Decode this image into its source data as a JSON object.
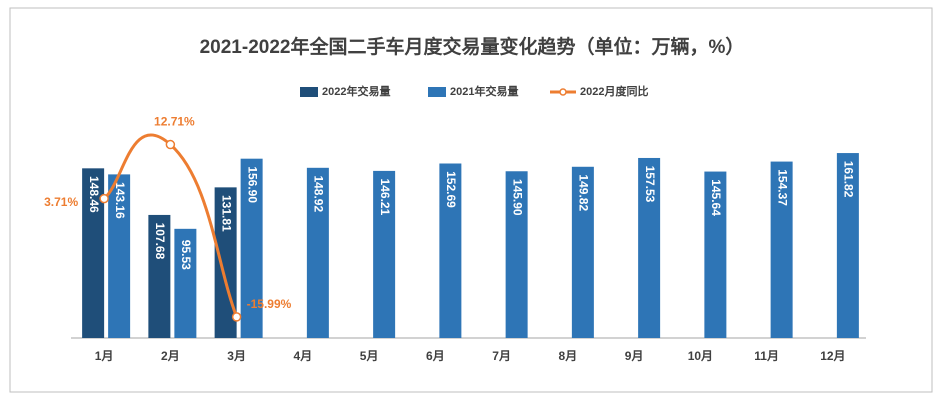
{
  "chart_data": {
    "type": "bar",
    "title": "2021-2022年全国二手车月度交易量变化趋势（单位：万辆，%）",
    "categories": [
      "1月",
      "2月",
      "3月",
      "4月",
      "5月",
      "6月",
      "7月",
      "8月",
      "9月",
      "10月",
      "11月",
      "12月"
    ],
    "ylim": [
      0,
      175
    ],
    "y2lim": [
      -19.5,
      13.8
    ],
    "series": [
      {
        "name": "2022年交易量",
        "type": "bar",
        "color": "#1f4e79",
        "values": [
          148.46,
          107.68,
          131.81,
          null,
          null,
          null,
          null,
          null,
          null,
          null,
          null,
          null
        ],
        "value_labels": [
          "148.46",
          "107.68",
          "131.81",
          null,
          null,
          null,
          null,
          null,
          null,
          null,
          null,
          null
        ]
      },
      {
        "name": "2021年交易量",
        "type": "bar",
        "color": "#2e75b6",
        "values": [
          143.16,
          95.53,
          156.9,
          148.92,
          146.21,
          152.69,
          145.9,
          149.82,
          157.53,
          145.64,
          154.37,
          161.82
        ],
        "value_labels": [
          "143.16",
          "95.53",
          "156.90",
          "148.92",
          "146.21",
          "152.69",
          "145.90",
          "149.82",
          "157.53",
          "145.64",
          "154.37",
          "161.82"
        ]
      },
      {
        "name": "2022月度同比",
        "type": "line",
        "axis": "y2",
        "color": "#ed7d31",
        "values": [
          3.71,
          12.71,
          -15.99,
          null,
          null,
          null,
          null,
          null,
          null,
          null,
          null,
          null
        ],
        "value_labels": [
          "3.71%",
          "12.71%",
          "-15.99%",
          null,
          null,
          null,
          null,
          null,
          null,
          null,
          null,
          null
        ]
      }
    ]
  }
}
